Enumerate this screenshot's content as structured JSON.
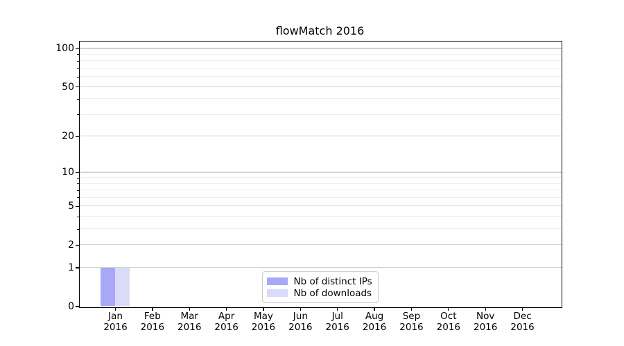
{
  "chart_data": {
    "type": "bar",
    "title": "flowMatch 2016",
    "categories": [
      "Jan",
      "Feb",
      "Mar",
      "Apr",
      "May",
      "Jun",
      "Jul",
      "Aug",
      "Sep",
      "Oct",
      "Nov",
      "Dec"
    ],
    "year_label": "2016",
    "series": [
      {
        "name": "Nb of distinct IPs",
        "color": "#a8a8f8",
        "values": [
          1,
          0,
          0,
          0,
          0,
          0,
          0,
          0,
          0,
          0,
          0,
          0
        ]
      },
      {
        "name": "Nb of downloads",
        "color": "#dadaf9",
        "values": [
          1,
          0,
          0,
          0,
          0,
          0,
          0,
          0,
          0,
          0,
          0,
          0
        ]
      }
    ],
    "y_scale": "log10(1+y)",
    "ylim": [
      0,
      114
    ],
    "y_major_ticks": [
      {
        "value": 0,
        "label": "0"
      },
      {
        "value": 1,
        "label": "1"
      },
      {
        "value": 2,
        "label": "2"
      },
      {
        "value": 5,
        "label": "5"
      },
      {
        "value": 10,
        "label": "10"
      },
      {
        "value": 20,
        "label": "20"
      },
      {
        "value": 50,
        "label": "50"
      },
      {
        "value": 100,
        "label": "100"
      }
    ],
    "y_minor_ticks": [
      3,
      4,
      6,
      7,
      8,
      9,
      30,
      40,
      60,
      70,
      80,
      90
    ],
    "xlabel": "",
    "ylabel": "",
    "grid": "horizontal-only",
    "legend": {
      "position": "lower-center",
      "border_color": "#cccccc",
      "background": "#ffffff"
    },
    "colors": {
      "major_grid": "#d2d2d2",
      "minor_grid": "#ededed",
      "axis": "#000000",
      "text": "#000000",
      "background": "#ffffff"
    }
  }
}
